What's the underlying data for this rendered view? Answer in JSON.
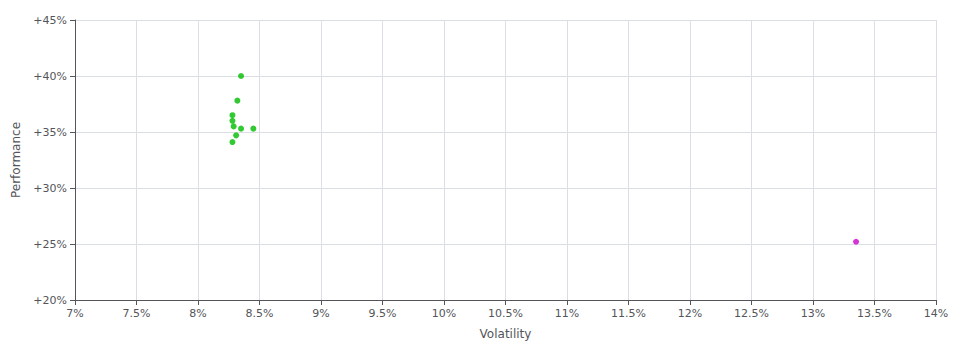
{
  "chart_data": {
    "type": "scatter",
    "xlabel": "Volatility",
    "ylabel": "Performance",
    "xlim": [
      0.07,
      0.14
    ],
    "ylim": [
      0.2,
      0.45
    ],
    "xticks": [
      {
        "value": 0.07,
        "label": "7%"
      },
      {
        "value": 0.075,
        "label": "7.5%"
      },
      {
        "value": 0.08,
        "label": "8%"
      },
      {
        "value": 0.085,
        "label": "8.5%"
      },
      {
        "value": 0.09,
        "label": "9%"
      },
      {
        "value": 0.095,
        "label": "9.5%"
      },
      {
        "value": 0.1,
        "label": "10%"
      },
      {
        "value": 0.105,
        "label": "10.5%"
      },
      {
        "value": 0.11,
        "label": "11%"
      },
      {
        "value": 0.115,
        "label": "11.5%"
      },
      {
        "value": 0.12,
        "label": "12%"
      },
      {
        "value": 0.125,
        "label": "12.5%"
      },
      {
        "value": 0.13,
        "label": "13%"
      },
      {
        "value": 0.135,
        "label": "13.5%"
      },
      {
        "value": 0.14,
        "label": "14%"
      }
    ],
    "yticks": [
      {
        "value": 0.2,
        "label": "+20%"
      },
      {
        "value": 0.25,
        "label": "+25%"
      },
      {
        "value": 0.3,
        "label": "+30%"
      },
      {
        "value": 0.35,
        "label": "+35%"
      },
      {
        "value": 0.4,
        "label": "+40%"
      },
      {
        "value": 0.45,
        "label": "+45%"
      }
    ],
    "grid": true,
    "series": [
      {
        "color": "#00bb00",
        "x": [
          0.0835,
          0.0832,
          0.0828,
          0.0828,
          0.0829,
          0.0835,
          0.0845,
          0.0831,
          0.0828
        ],
        "values": [
          0.4,
          0.378,
          0.365,
          0.36,
          0.355,
          0.353,
          0.353,
          0.347,
          0.341
        ]
      },
      {
        "color": "#cc00cc",
        "x": [
          0.1335
        ],
        "values": [
          0.252
        ]
      }
    ]
  }
}
